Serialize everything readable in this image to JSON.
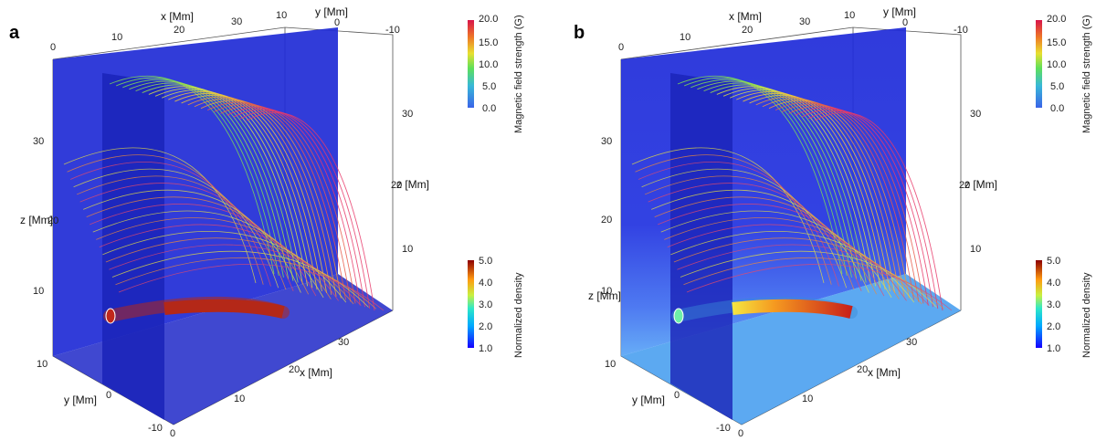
{
  "panels": [
    {
      "id": "a",
      "label": "a",
      "axis_labels": {
        "x_top": "x [Mm]",
        "y_top": "y [Mm]",
        "z_left": "z [Mm]",
        "z_right": "z [Mm]",
        "x_bottom": "x [Mm]",
        "y_bottom": "y [Mm]"
      },
      "ticks_x_top": [
        "0",
        "10",
        "20",
        "30"
      ],
      "ticks_y_top": [
        "10",
        "0",
        "-10"
      ],
      "ticks_z_left": [
        "30",
        "20",
        "10"
      ],
      "ticks_z_right": [
        "30",
        "20",
        "10"
      ],
      "ticks_x_bottom": [
        "0",
        "10",
        "20",
        "30"
      ],
      "ticks_y_bottom": [
        "10",
        "0",
        "-10"
      ],
      "field_colorbar": {
        "title": "Magnetic field strength (G)",
        "ticks": [
          "20.0",
          "15.0",
          "10.0",
          "5.0",
          "0.0"
        ]
      },
      "density_colorbar": {
        "title": "Normalized density",
        "ticks": [
          "5.0",
          "4.0",
          "3.0",
          "2.0",
          "1.0"
        ]
      },
      "tube_color": "#b42818"
    },
    {
      "id": "b",
      "label": "b",
      "axis_labels": {
        "x_top": "x [Mm]",
        "y_top": "y [Mm]",
        "z_left": "z [Mm]",
        "z_right": "z [Mm]",
        "x_bottom": "x [Mm]",
        "y_bottom": "y [Mm]"
      },
      "ticks_x_top": [
        "0",
        "10",
        "20",
        "30"
      ],
      "ticks_y_top": [
        "10",
        "0",
        "-10"
      ],
      "ticks_z_left": [
        "30",
        "20",
        "10"
      ],
      "ticks_z_right": [
        "30",
        "20",
        "10"
      ],
      "ticks_x_bottom": [
        "0",
        "10",
        "20",
        "30"
      ],
      "ticks_y_bottom": [
        "10",
        "0",
        "-10"
      ],
      "field_colorbar": {
        "title": "Magnetic field strength (G)",
        "ticks": [
          "20.0",
          "15.0",
          "10.0",
          "5.0",
          "0.0"
        ]
      },
      "density_colorbar": {
        "title": "Normalized density",
        "ticks": [
          "5.0",
          "4.0",
          "3.0",
          "2.0",
          "1.0"
        ]
      },
      "tube_color": "#e8321a"
    }
  ],
  "colors": {
    "wall": "#1f2bd6",
    "slice": "#1a23b8",
    "floor_a": "#1e28c8",
    "floor_b": "#4aa0f0"
  }
}
